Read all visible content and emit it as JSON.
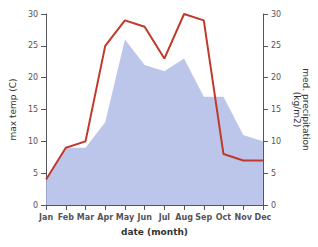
{
  "chart_data": {
    "type": "line",
    "xlabel": "date (month)",
    "ylabel": "max temp (C)",
    "y2label": "med. precipitation\n(kg/m2)",
    "categories": [
      "Jan",
      "Feb",
      "Mar",
      "Apr",
      "May",
      "Jun",
      "Jul",
      "Aug",
      "Sep",
      "Oct",
      "Nov",
      "Dec"
    ],
    "series": [
      {
        "type": "area",
        "axis": "y2",
        "color": "#b0bce8",
        "values": [
          4,
          9,
          9,
          13,
          26,
          22,
          21,
          23,
          17,
          17,
          11,
          10
        ]
      },
      {
        "type": "line",
        "color": "#c0392b",
        "values": [
          4,
          9,
          10,
          25,
          29,
          28,
          23,
          30,
          29,
          8,
          7,
          7
        ]
      }
    ],
    "ylim": [
      0,
      30
    ],
    "yticks": [
      0,
      5,
      10,
      15,
      20,
      25,
      30
    ],
    "y2lim": [
      0,
      30
    ],
    "y2ticks": [
      0,
      5,
      10,
      15,
      20,
      25,
      30
    ],
    "grid": false
  }
}
